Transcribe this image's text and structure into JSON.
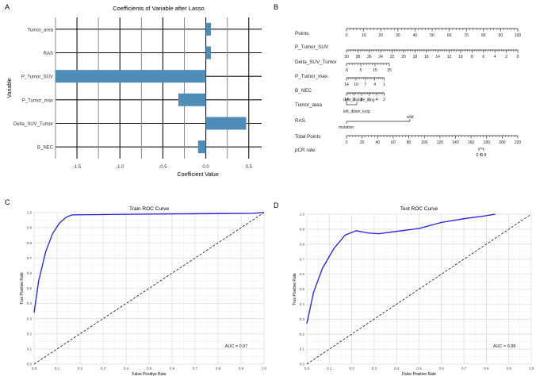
{
  "panel_labels": {
    "a": "A",
    "b": "B",
    "c": "C",
    "d": "D"
  },
  "chart_data": [
    {
      "id": "lasso",
      "type": "bar",
      "orientation": "horizontal",
      "title": "Coefficients of Variable after Lasso",
      "xlabel": "Coefficient Value",
      "ylabel": "Variable",
      "categories": [
        "Tumor_area",
        "RAS",
        "P_Tumor_SUV",
        "P_Tumor_max",
        "Delta_SUV_Tumor",
        "B_NEC"
      ],
      "values": [
        0.06,
        0.06,
        -1.75,
        -0.32,
        0.47,
        -0.09
      ],
      "xlim": [
        -1.75,
        0.65
      ],
      "xticks": [
        -1.5,
        -1.0,
        -0.5,
        0.0,
        0.5
      ],
      "xtick_labels": [
        "-1.5",
        "-1.0",
        "-0.5",
        "0.0",
        "0.5"
      ],
      "bar_color": "#4f8db8"
    },
    {
      "id": "nomogram",
      "type": "nomogram",
      "rows": [
        {
          "label": "Points",
          "scale": [
            0,
            100
          ],
          "ticks": [
            0,
            10,
            20,
            30,
            40,
            50,
            60,
            70,
            80,
            90,
            100
          ],
          "tick_labels": [
            "0",
            "10",
            "20",
            "30",
            "40",
            "50",
            "60",
            "70",
            "80",
            "90",
            "100"
          ],
          "minor": 1
        },
        {
          "label": "P_Tumor_SUV",
          "scale": [
            0,
            100
          ],
          "ticks": [
            0,
            10,
            20,
            30,
            40,
            50,
            60,
            70,
            80,
            90,
            100
          ],
          "tick_labels": [
            "30",
            "28",
            "26",
            "24",
            "22",
            "20",
            "18",
            "16",
            "14",
            "12",
            "10",
            "8",
            "6",
            "4",
            "2",
            "0"
          ],
          "minor": 2
        },
        {
          "label": "Delta_SUV_Tumor",
          "scale": [
            0,
            25
          ],
          "ticks": [
            0,
            5,
            10,
            15,
            20,
            25
          ],
          "tick_labels": [
            "-5",
            "5",
            "15",
            "25"
          ],
          "minor": 1
        },
        {
          "label": "P_Tumor_max",
          "scale": [
            0,
            20
          ],
          "ticks": [
            0,
            5,
            10,
            15,
            20
          ],
          "tick_labels": [
            "14",
            "10",
            "7",
            "4",
            "1"
          ],
          "minor": 1
        },
        {
          "label": "B_NEC",
          "scale": [
            0,
            20
          ],
          "ticks": [
            0,
            5,
            10,
            15,
            20
          ],
          "tick_labels": [
            "14",
            "11",
            "8",
            "6",
            "4",
            "2"
          ],
          "minor": 1
        },
        {
          "label": "Tumor_area",
          "scale": [
            0,
            6
          ],
          "ticks": [
            0,
            6
          ],
          "tick_labels": [],
          "categories": [
            "right_middle_lung",
            "left_down_lung"
          ]
        },
        {
          "label": "RAS",
          "scale": [
            0,
            73
          ],
          "ticks": [
            0,
            73
          ],
          "tick_labels": [],
          "categories": [
            "mutation",
            "wild"
          ]
        },
        {
          "label": "Total Points",
          "scale": [
            0,
            220
          ],
          "ticks": [
            0,
            20,
            40,
            60,
            80,
            100,
            120,
            140,
            160,
            180,
            200,
            220
          ],
          "tick_labels": [
            "0",
            "20",
            "40",
            "60",
            "80",
            "100",
            "120",
            "140",
            "160",
            "180",
            "200",
            "220"
          ],
          "minor": 5
        },
        {
          "label": "pCR rate",
          "scale": [
            0,
            0.8
          ],
          "ticks": [],
          "tick_labels": [
            "0.4",
            "0.8"
          ]
        }
      ]
    },
    {
      "id": "train_roc",
      "type": "line",
      "title": "Train ROC Curve",
      "xlabel": "False Positive Rate",
      "ylabel": "True Positive Rate",
      "xlim": [
        0,
        1
      ],
      "ylim": [
        0.0,
        1.0
      ],
      "xticks": [
        0.0,
        0.1,
        0.2,
        0.3,
        0.4,
        0.5,
        0.6,
        0.7,
        0.8,
        0.9,
        1.0
      ],
      "yticks": [
        0.0,
        0.1,
        0.2,
        0.3,
        0.4,
        0.5,
        0.6,
        0.7,
        0.8,
        0.9,
        1.0
      ],
      "x": [
        0.0,
        0.02,
        0.05,
        0.08,
        0.11,
        0.14,
        0.165,
        0.5,
        0.95,
        1.0
      ],
      "y": [
        0.34,
        0.55,
        0.74,
        0.86,
        0.93,
        0.97,
        0.985,
        0.99,
        0.995,
        1.0
      ],
      "annotation": "AUC = 0.97",
      "line_color": "#1f1fd6"
    },
    {
      "id": "test_roc",
      "type": "line",
      "title": "Test ROC Curve",
      "xlabel": "False Positive Rate",
      "ylabel": "True Positive Rate",
      "xlim": [
        0,
        1
      ],
      "ylim": [
        0.0,
        1.0
      ],
      "xticks": [
        0.0,
        0.1,
        0.2,
        0.3,
        0.4,
        0.5,
        0.6,
        0.7,
        0.8,
        0.9,
        1.0
      ],
      "yticks": [
        0.0,
        0.1,
        0.2,
        0.3,
        0.4,
        0.5,
        0.6,
        0.7,
        0.8,
        0.9,
        1.0
      ],
      "x": [
        0.0,
        0.03,
        0.07,
        0.12,
        0.17,
        0.22,
        0.27,
        0.32,
        0.4,
        0.5,
        0.6,
        0.7,
        0.8,
        0.84
      ],
      "y": [
        0.27,
        0.48,
        0.64,
        0.77,
        0.86,
        0.89,
        0.875,
        0.87,
        0.885,
        0.905,
        0.945,
        0.97,
        0.99,
        1.0
      ],
      "annotation": "AUC = 0.88",
      "line_color": "#1f1fd6"
    }
  ]
}
